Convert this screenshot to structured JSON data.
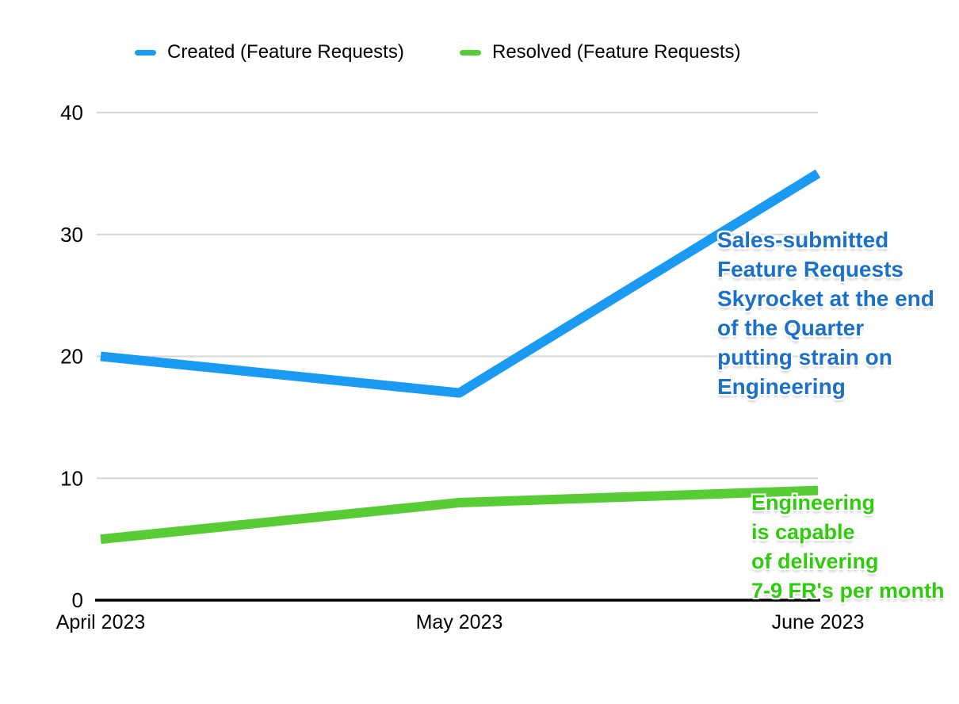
{
  "chart_data": {
    "type": "line",
    "categories": [
      "April 2023",
      "May 2023",
      "June 2023"
    ],
    "series": [
      {
        "name": "Created (Feature Requests)",
        "color": "#1A9AF2",
        "values": [
          20,
          17,
          35
        ]
      },
      {
        "name": "Resolved (Feature Requests)",
        "color": "#58CC34",
        "values": [
          5,
          8,
          9
        ]
      }
    ],
    "title": "",
    "xlabel": "",
    "ylabel": "",
    "yticks": [
      0,
      10,
      20,
      30,
      40
    ],
    "ylim": [
      0,
      40
    ],
    "grid": "horizontal",
    "gridline_color": "#D5D5D5",
    "axis_color": "#000000",
    "tick_label_color": "#000000",
    "legend_position": "top"
  },
  "annotations": {
    "created": {
      "color": "#1B70C8",
      "lines": [
        "Sales-submitted",
        "Feature Requests",
        "Skyrocket at the end",
        "of the Quarter",
        "putting strain on",
        "Engineering"
      ]
    },
    "resolved": {
      "color": "#2ECC0C",
      "lines": [
        "Engineering",
        "is capable",
        "of delivering",
        "7-9 FR's per month"
      ]
    }
  }
}
